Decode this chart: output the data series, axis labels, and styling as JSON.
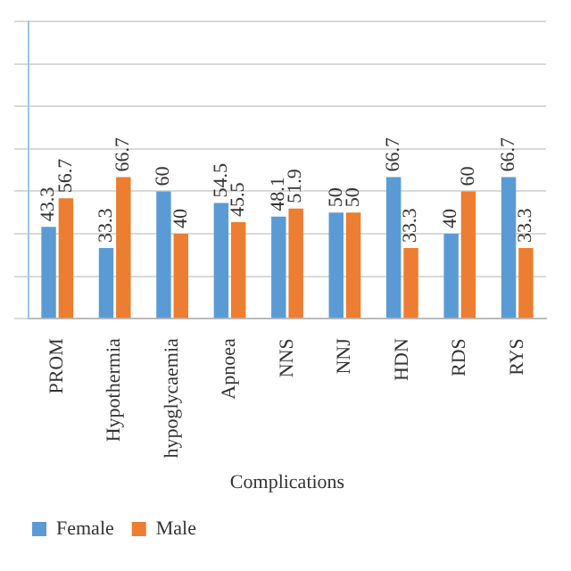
{
  "chart_data": {
    "type": "bar",
    "xlabel": "Complications",
    "categories": [
      "PROM",
      "Hypothermia",
      "hypoglycaemia",
      "Apnoea",
      "NNS",
      "NNJ",
      "HDN",
      "RDS",
      "RYS"
    ],
    "series": [
      {
        "name": "Female",
        "color": "#5b9bd5",
        "values": [
          43.3,
          33.3,
          60,
          54.5,
          48.1,
          50,
          66.7,
          40,
          66.7
        ]
      },
      {
        "name": "Male",
        "color": "#ed7d31",
        "values": [
          56.7,
          66.7,
          40,
          45.5,
          51.9,
          50,
          33.3,
          60,
          33.3
        ]
      }
    ],
    "ylim": [
      0,
      140
    ],
    "yticks": [
      {
        "value": 0,
        "label": null
      },
      {
        "value": 20,
        "label": null
      },
      {
        "value": 40,
        "label": null
      },
      {
        "value": 60,
        "label": null
      },
      {
        "value": 80,
        "label": null
      },
      {
        "value": 100,
        "label": null
      },
      {
        "value": 120,
        "label": null
      },
      {
        "value": 140,
        "label": null
      }
    ],
    "tick_labels": "x",
    "grid": "y",
    "legend": "bottom left",
    "data_labels": true
  }
}
